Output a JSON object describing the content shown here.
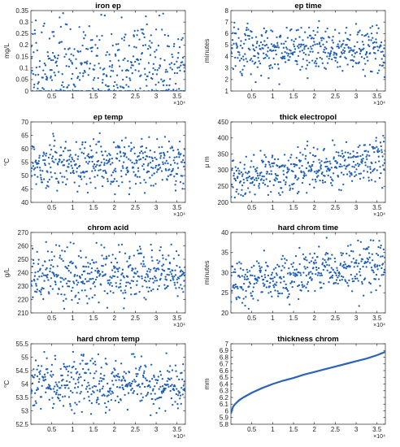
{
  "chart_data": [
    {
      "type": "scatter",
      "title": "iron ep",
      "ylabel": "mg/L",
      "xlim": [
        0,
        37000
      ],
      "ylim": [
        0,
        0.35
      ],
      "yticks": [
        "0",
        "0.05",
        "0.1",
        "0.15",
        "0.2",
        "0.25",
        "0.3",
        "0.35"
      ],
      "xticks": [
        "0.5",
        "1",
        "1.5",
        "2",
        "2.5",
        "3",
        "3.5"
      ],
      "x_exponent": "×10⁴",
      "n_points": 420,
      "y_distribution": {
        "min": 0.0,
        "max": 0.34,
        "center": 0.12,
        "note": "many points at 0"
      },
      "trend": "none"
    },
    {
      "type": "scatter",
      "title": "ep time",
      "ylabel": "minutes",
      "xlim": [
        0,
        37000
      ],
      "ylim": [
        1,
        8
      ],
      "yticks": [
        "1",
        "2",
        "3",
        "4",
        "5",
        "6",
        "7",
        "8"
      ],
      "xticks": [
        "0.5",
        "1",
        "1.5",
        "2",
        "2.5",
        "3",
        "3.5"
      ],
      "x_exponent": "×10⁴",
      "n_points": 420,
      "y_distribution": {
        "min": 1.5,
        "max": 7.1,
        "center": 4.6
      },
      "trend": "none"
    },
    {
      "type": "scatter",
      "title": "ep temp",
      "ylabel": "°C",
      "xlim": [
        0,
        37000
      ],
      "ylim": [
        40,
        70
      ],
      "yticks": [
        "40",
        "45",
        "50",
        "55",
        "60",
        "65",
        "70"
      ],
      "xticks": [
        "0.5",
        "1",
        "1.5",
        "2",
        "2.5",
        "3",
        "3.5"
      ],
      "x_exponent": "×10⁴",
      "n_points": 420,
      "y_distribution": {
        "min": 43,
        "max": 66,
        "center": 54.5
      },
      "trend": "none"
    },
    {
      "type": "scatter",
      "title": "thick electropol",
      "ylabel": "μ m",
      "xlim": [
        0,
        37000
      ],
      "ylim": [
        200,
        450
      ],
      "yticks": [
        "200",
        "250",
        "300",
        "350",
        "400",
        "450"
      ],
      "xticks": [
        "0.5",
        "1",
        "1.5",
        "2",
        "2.5",
        "3",
        "3.5"
      ],
      "x_exponent": "×10⁴",
      "n_points": 420,
      "y_distribution": {
        "min": 215,
        "max": 420,
        "center_start": 270,
        "center_end": 335
      },
      "trend": "increasing"
    },
    {
      "type": "scatter",
      "title": "chrom acid",
      "ylabel": "g/L",
      "xlim": [
        0,
        37000
      ],
      "ylim": [
        210,
        270
      ],
      "yticks": [
        "210",
        "220",
        "230",
        "240",
        "250",
        "260",
        "270"
      ],
      "xticks": [
        "0.5",
        "1",
        "1.5",
        "2",
        "2.5",
        "3",
        "3.5"
      ],
      "x_exponent": "×10⁴",
      "n_points": 420,
      "y_distribution": {
        "min": 212,
        "max": 263,
        "center": 239
      },
      "trend": "none"
    },
    {
      "type": "scatter",
      "title": "hard chrom time",
      "ylabel": "minutes",
      "xlim": [
        0,
        37000
      ],
      "ylim": [
        20,
        40
      ],
      "yticks": [
        "20",
        "25",
        "30",
        "35",
        "40"
      ],
      "xticks": [
        "0.5",
        "1",
        "1.5",
        "2",
        "2.5",
        "3",
        "3.5"
      ],
      "x_exponent": "×10⁴",
      "n_points": 420,
      "y_distribution": {
        "min": 21,
        "max": 39,
        "center_start": 27,
        "center_end": 33
      },
      "trend": "increasing"
    },
    {
      "type": "scatter",
      "title": "hard chrom temp",
      "ylabel": "°C",
      "xlim": [
        0,
        37000
      ],
      "ylim": [
        52.5,
        55.5
      ],
      "yticks": [
        "52.5",
        "53",
        "53.5",
        "54",
        "54.5",
        "55",
        "55.5"
      ],
      "xticks": [
        "0.5",
        "1",
        "1.5",
        "2",
        "2.5",
        "3",
        "3.5"
      ],
      "x_exponent": "×10⁴",
      "n_points": 420,
      "y_distribution": {
        "min": 52.8,
        "max": 55.2,
        "center": 54.0
      },
      "trend": "none"
    },
    {
      "type": "line",
      "title": "thickness chrom",
      "ylabel": "mm",
      "xlim": [
        0,
        37000
      ],
      "ylim": [
        5.8,
        7
      ],
      "yticks": [
        "5.8",
        "5.9",
        "6",
        "6.1",
        "6.2",
        "6.3",
        "6.4",
        "6.5",
        "6.6",
        "6.7",
        "6.8",
        "6.9",
        "7"
      ],
      "xticks": [
        "0.5",
        "1",
        "1.5",
        "2",
        "2.5",
        "3",
        "3.5"
      ],
      "x_exponent": "×10⁴",
      "x": [
        0,
        500,
        1000,
        2000,
        3000,
        5000,
        7500,
        10000,
        12500,
        15000,
        17500,
        20000,
        22500,
        25000,
        27500,
        30000,
        32500,
        35000,
        37000
      ],
      "y": [
        5.96,
        6.06,
        6.1,
        6.16,
        6.2,
        6.27,
        6.34,
        6.4,
        6.45,
        6.49,
        6.54,
        6.58,
        6.62,
        6.66,
        6.7,
        6.74,
        6.78,
        6.83,
        6.88
      ]
    }
  ]
}
